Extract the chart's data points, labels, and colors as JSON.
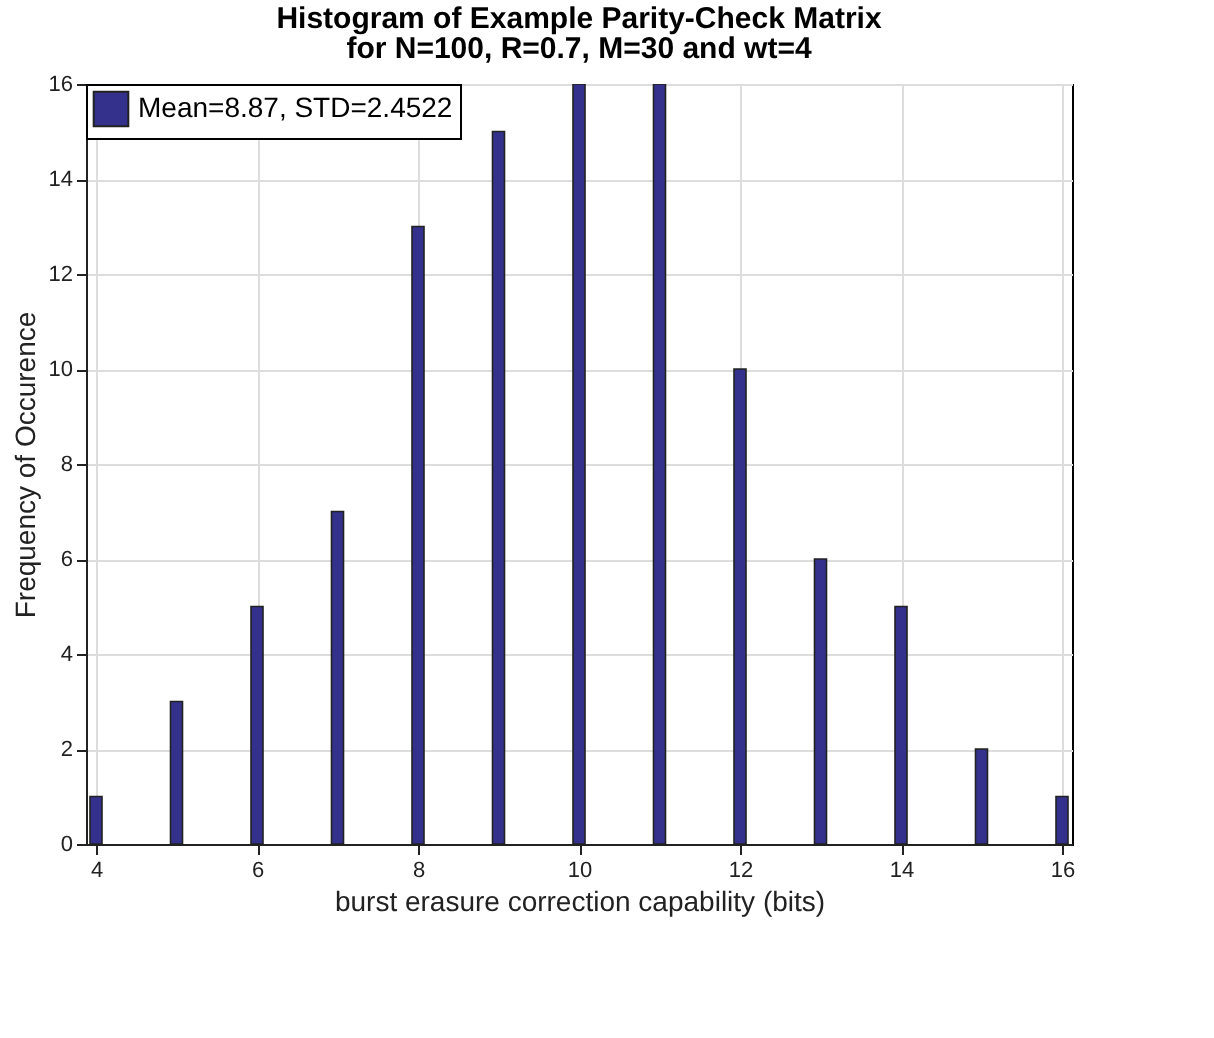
{
  "chart_data": {
    "type": "bar",
    "title": "Histogram of Example Parity-Check Matrix\nfor N=100, R=0.7, M=30 and wt=4",
    "xlabel": "burst erasure correction capability (bits)",
    "ylabel": "Frequency of Occurence",
    "x": [
      4,
      5,
      6,
      7,
      8,
      9,
      10,
      11,
      12,
      13,
      14,
      15,
      16
    ],
    "series": [
      {
        "name": "Mean=8.87, STD=2.4522",
        "color": "#33318c",
        "values": [
          1,
          3,
          5,
          7,
          13,
          15,
          16,
          16,
          10,
          6,
          5,
          2,
          1
        ]
      }
    ],
    "xlim": [
      4,
      16
    ],
    "xticks": [
      4,
      6,
      8,
      10,
      12,
      14,
      16
    ],
    "ylim": [
      0,
      16
    ],
    "yticks": [
      0,
      2,
      4,
      6,
      8,
      10,
      12,
      14,
      16
    ],
    "grid": true,
    "legend": "top left"
  }
}
